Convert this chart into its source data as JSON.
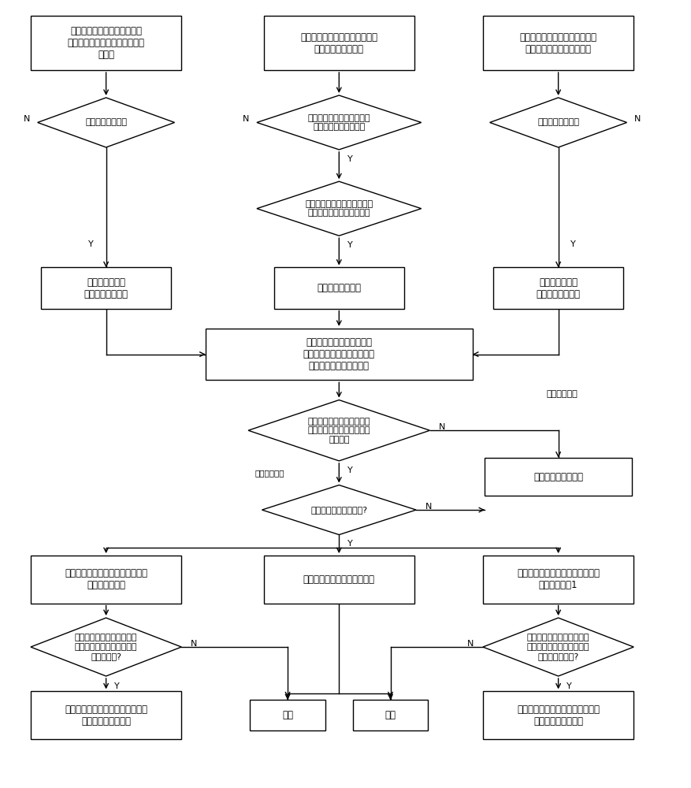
{
  "bg_color": "#ffffff",
  "fig_width": 8.78,
  "fig_height": 10.0,
  "texts": {
    "r1": "电容器、站用变支路通过保护\n测控装置获取对应支路的电流过\n流信号",
    "r2": "通过有源支路保护测控装置检测\n其电流及电流变化量",
    "r3": "变压器、馈线及分段支路通过保\n护测控装置获取其功率方向",
    "d1": "是否满足过流条件",
    "d2": "任意一条有源支路的电流超\n过稳态过流启动门槛值",
    "d3": "功率方向为反方向",
    "d4": "任意一条有源支路电流变化量\n超过电流变化量启动门槛值",
    "r4": "向母线保护装置\n发送允许动作信号",
    "r5": "启动母线保护装置",
    "r6": "向母线保护装置\n发送允许动作信号",
    "r7": "在启动后的指定时间内接收\n来自某母线各个支路保护测控\n装置发送的允许动作信号",
    "d5": "在指定时间内接收到所有支\n路保护测控装置发送的允许\n动作信号",
    "rnd": "母线保护装置不动作",
    "d6": "复合电压闭锁元件开放?",
    "r8": "向变压器保护测控装置发送本侧母\n线保护动作信号",
    "r9": "母线保护装置动作切除该母线",
    "r10": "将母线保护装置内该段故障母线保\n护动作信号置1",
    "d7": "变压器保护测控装置检测到\n变压器低压侧电流大于稳态\n过流门槛值?",
    "d8": "母线保护装置继续收到分段\n保护测控装置发送的分段过\n流保护动作信号?",
    "end1": "结束",
    "end2": "结束",
    "t1": "跳开变压器其他侧断路器，切除变\n压器低压侧死区故障",
    "t2": "跳开电流互感器侧母线的所有支路\n，切除分段死区故障",
    "lbl_ext": "母线外部故障",
    "lbl_int": "母线内部故障",
    "Y": "Y",
    "N": "N"
  }
}
